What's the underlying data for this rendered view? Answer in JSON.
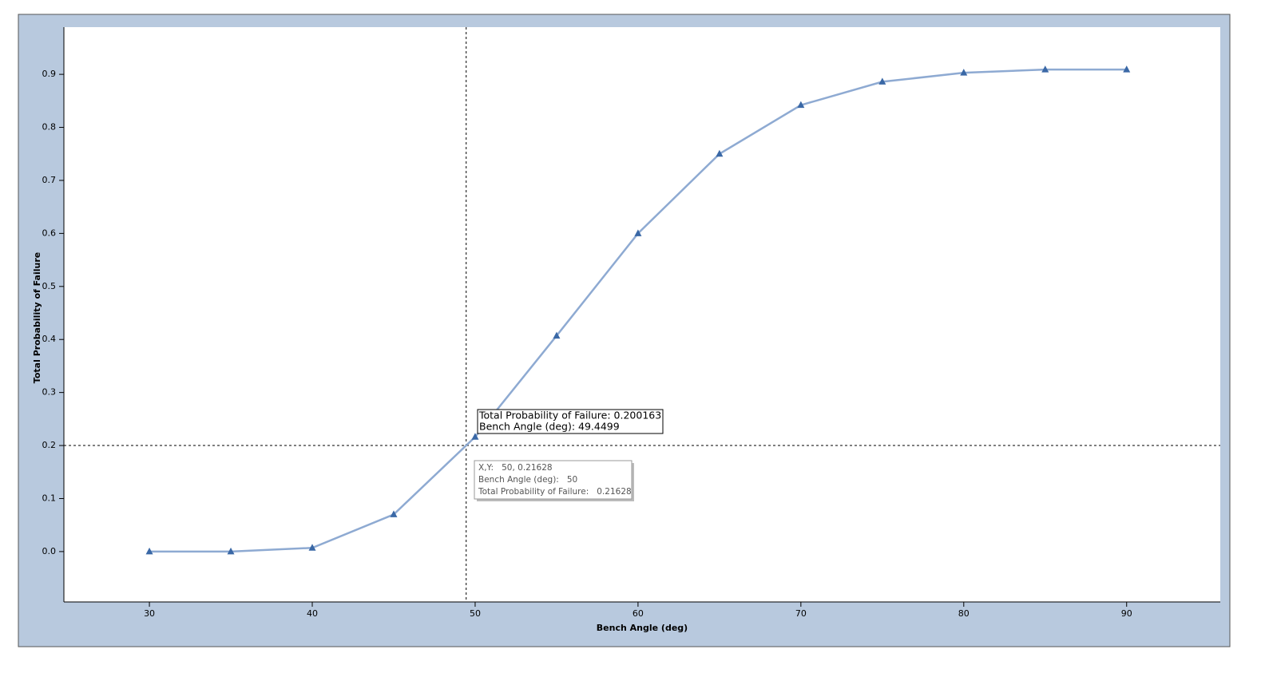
{
  "chart_data": {
    "type": "line",
    "xlabel": "Bench Angle (deg)",
    "ylabel": "Total Probability of Failure",
    "x": [
      30,
      35,
      40,
      45,
      50,
      55,
      60,
      65,
      70,
      75,
      80,
      85,
      90
    ],
    "series": [
      {
        "color": "#8eaad2",
        "marker_color": "#3a68a6",
        "values": [
          0,
          0,
          0.007,
          0.07,
          0.21628,
          0.407,
          0.6,
          0.75,
          0.842,
          0.886,
          0.903,
          0.909,
          0.909
        ]
      }
    ],
    "xlim": [
      24.75,
      95.75
    ],
    "ylim": [
      -0.095,
      0.989
    ],
    "xticks": [
      30,
      40,
      50,
      60,
      70,
      80,
      90
    ],
    "yticks": [
      {
        "value": 0,
        "label": "0.0"
      },
      0.1,
      0.2,
      0.3,
      0.4,
      0.5,
      0.6,
      0.7,
      0.8,
      0.9
    ],
    "crosshair": {
      "x": 49.4499,
      "y": 0.200163,
      "labels": [
        "Total Probability of Failure: 0.200163",
        "Bench Angle (deg): 49.4499"
      ]
    },
    "tooltip": {
      "lines": [
        "X,Y:   50, 0.21628",
        "Bench Angle (deg):   50",
        "Total Probability of Failure:   0.21628"
      ]
    }
  }
}
